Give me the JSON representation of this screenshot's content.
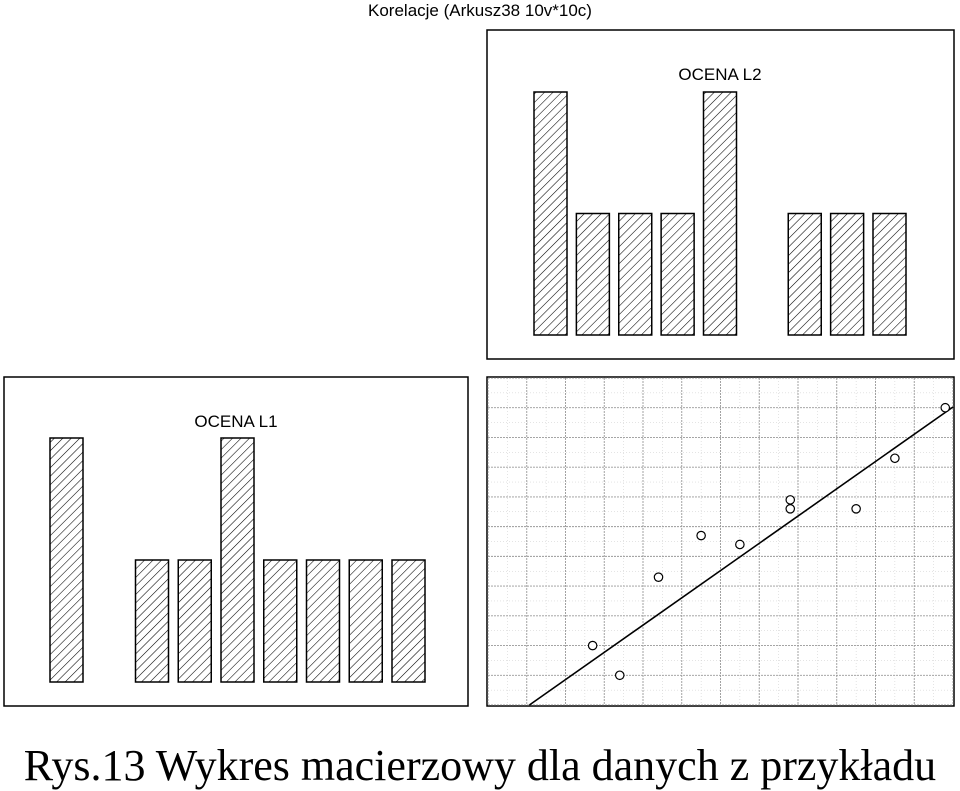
{
  "title": "Korelacje (Arkusz38 10v*10c)",
  "caption": "Rys.13 Wykres macierzowy dla danych z przykładu",
  "colors": {
    "ink": "#000000",
    "background": "#ffffff",
    "grid": "#9a9a9a"
  },
  "chart_data": [
    {
      "type": "bar",
      "panel": "histogram",
      "variable": "OCENA L2",
      "values": [
        2,
        1,
        1,
        1,
        2,
        0,
        1,
        1,
        1
      ],
      "fill": "diagonal-hatch"
    },
    {
      "type": "bar",
      "panel": "histogram",
      "variable": "OCENA L1",
      "values": [
        2,
        0,
        1,
        1,
        2,
        1,
        1,
        1,
        1
      ],
      "fill": "diagonal-hatch"
    },
    {
      "type": "scatter",
      "panel": "scatterplot",
      "x_variable": "OCENA L1",
      "y_variable": "OCENA L2",
      "points": [
        [
          2.7,
          2.0
        ],
        [
          3.4,
          1.0
        ],
        [
          4.4,
          4.3
        ],
        [
          5.5,
          5.7
        ],
        [
          6.5,
          5.4
        ],
        [
          7.8,
          6.6
        ],
        [
          7.8,
          6.9
        ],
        [
          9.5,
          6.6
        ],
        [
          10.5,
          8.3
        ],
        [
          11.8,
          10.0
        ]
      ],
      "trendline": {
        "intercept": -0.98,
        "slope": 0.917
      },
      "xlim": [
        0,
        12
      ],
      "ylim": [
        0,
        11
      ],
      "grid": true,
      "grid_minor": true
    }
  ]
}
